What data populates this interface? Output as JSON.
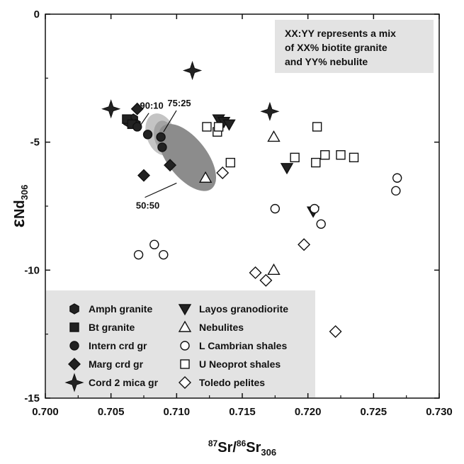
{
  "chart_data": {
    "type": "scatter",
    "xlabel": {
      "sup1": "87",
      "sr1": "Sr/",
      "sup2": "86",
      "sr2": "Sr",
      "sub": "306"
    },
    "ylabel": {
      "symbol": "ε",
      "nd": "Nd",
      "sub": "306"
    },
    "xlim": [
      0.7,
      0.73
    ],
    "ylim": [
      -15,
      0
    ],
    "x_ticks": [
      "0.700",
      "0.705",
      "0.710",
      "0.715",
      "0.720",
      "0.725",
      "0.730"
    ],
    "y_ticks": [
      "0",
      "-5",
      "-10",
      "-15"
    ],
    "grid": false,
    "legend_placement": "bottom-left",
    "note": {
      "lines": [
        "XX:YY  represents a mix",
        "of XX% biotite granite",
        "and YY% nebulite"
      ],
      "placement": "top-right",
      "color": "#e3e3e3"
    },
    "mixing_fields": [
      {
        "shade": "#c4c4c4",
        "center": [
          0.7088,
          -4.7
        ],
        "rx": 0.0011,
        "ry": 0.85,
        "rotation_deg": -20
      },
      {
        "shade": "#a3a3a3",
        "center": [
          0.7091,
          -4.8
        ],
        "rx": 0.0008,
        "ry": 0.65,
        "rotation_deg": -15
      },
      {
        "shade": "#8c8c8c",
        "center": [
          0.7108,
          -5.6
        ],
        "rx": 0.0015,
        "ry": 1.55,
        "rotation_deg": -38
      }
    ],
    "annotations": [
      {
        "text": "90:10",
        "x": 0.7081,
        "y": -3.7,
        "line_to": [
          0.7073,
          -4.3
        ]
      },
      {
        "text": "75:25",
        "x": 0.7102,
        "y": -3.6,
        "line_to": [
          0.709,
          -4.6
        ]
      },
      {
        "text": "50:50",
        "x": 0.7078,
        "y": -7.6,
        "line_to": [
          0.71,
          -6.6
        ]
      }
    ],
    "series": [
      {
        "name": "Amph granite",
        "marker": "hexagon",
        "fill": "#222222",
        "points": [
          [
            0.7067,
            -4.1
          ],
          [
            0.7063,
            -4.2
          ],
          [
            0.7069,
            -4.3
          ]
        ]
      },
      {
        "name": "Bt granite",
        "marker": "square",
        "fill": "#222222",
        "points": [
          [
            0.7062,
            -4.1
          ],
          [
            0.7066,
            -4.3
          ]
        ]
      },
      {
        "name": "Intern crd gr",
        "marker": "circle",
        "fill": "#222222",
        "points": [
          [
            0.707,
            -4.4
          ],
          [
            0.7078,
            -4.7
          ],
          [
            0.7088,
            -4.8
          ],
          [
            0.7089,
            -5.2
          ]
        ]
      },
      {
        "name": "Marg crd gr",
        "marker": "diamond",
        "fill": "#222222",
        "points": [
          [
            0.707,
            -3.7
          ],
          [
            0.7075,
            -6.3
          ],
          [
            0.7095,
            -5.9
          ]
        ]
      },
      {
        "name": "Cord 2 mica gr",
        "marker": "star4",
        "fill": "#222222",
        "points": [
          [
            0.705,
            -3.7
          ],
          [
            0.7112,
            -2.2
          ],
          [
            0.7171,
            -3.8
          ]
        ]
      },
      {
        "name": "Layos granodiorite",
        "marker": "triangle-down",
        "fill": "#222222",
        "points": [
          [
            0.7132,
            -4.1
          ],
          [
            0.7136,
            -4.2
          ],
          [
            0.714,
            -4.3
          ],
          [
            0.7184,
            -6.0
          ],
          [
            0.7204,
            -7.7
          ]
        ]
      },
      {
        "name": "Nebulites",
        "marker": "triangle-up",
        "fill": "#ffffff",
        "points": [
          [
            0.7122,
            -6.4
          ],
          [
            0.7174,
            -4.8
          ],
          [
            0.7174,
            -10.0
          ]
        ]
      },
      {
        "name": "L Cambrian shales",
        "marker": "circle",
        "fill": "#ffffff",
        "points": [
          [
            0.7071,
            -9.4
          ],
          [
            0.7083,
            -9.0
          ],
          [
            0.709,
            -9.4
          ],
          [
            0.7175,
            -7.6
          ],
          [
            0.7205,
            -7.6
          ],
          [
            0.721,
            -8.2
          ],
          [
            0.7268,
            -6.4
          ],
          [
            0.7267,
            -6.9
          ]
        ]
      },
      {
        "name": "U Neoprot shales",
        "marker": "square",
        "fill": "#ffffff",
        "points": [
          [
            0.7123,
            -4.4
          ],
          [
            0.7131,
            -4.6
          ],
          [
            0.7132,
            -4.4
          ],
          [
            0.7141,
            -5.8
          ],
          [
            0.719,
            -5.6
          ],
          [
            0.7206,
            -5.8
          ],
          [
            0.7207,
            -4.4
          ],
          [
            0.7213,
            -5.5
          ],
          [
            0.7225,
            -5.5
          ],
          [
            0.7235,
            -5.6
          ]
        ]
      },
      {
        "name": "Toledo pelites",
        "marker": "diamond",
        "fill": "#ffffff",
        "points": [
          [
            0.7135,
            -6.2
          ],
          [
            0.716,
            -10.1
          ],
          [
            0.7168,
            -10.4
          ],
          [
            0.7197,
            -9.0
          ],
          [
            0.7221,
            -12.4
          ]
        ]
      }
    ]
  }
}
